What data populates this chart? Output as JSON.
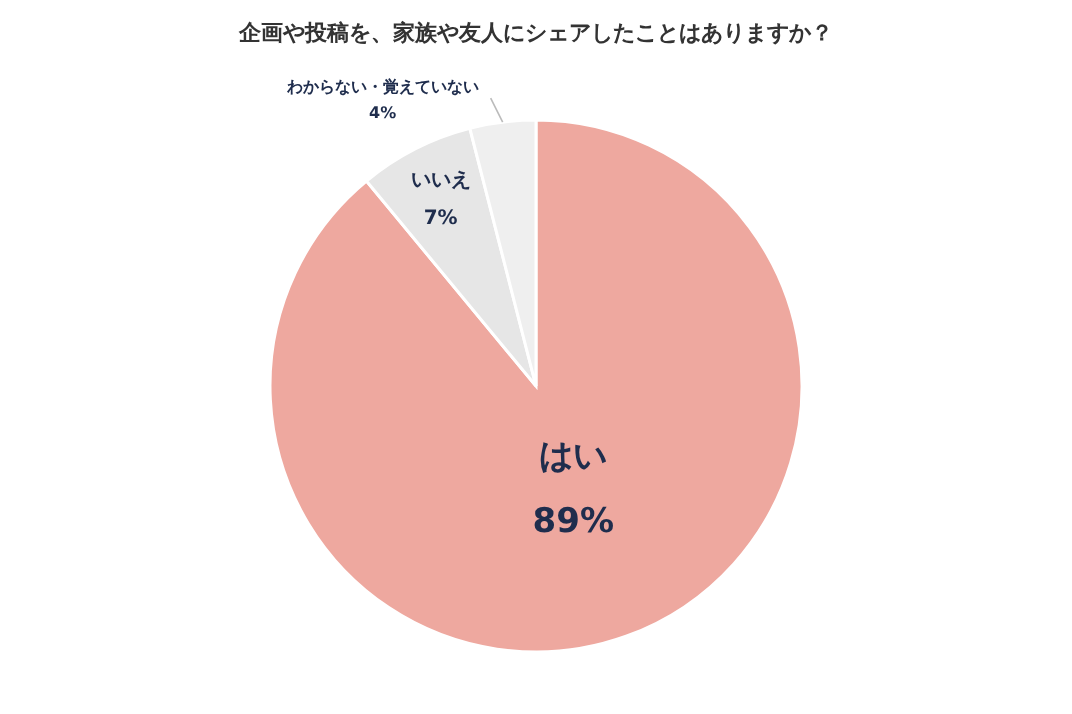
{
  "chart_data": {
    "type": "pie",
    "title": "企画や投稿を、家族や友人にシェアしたことはありますか？",
    "categories": [
      "はい",
      "いいえ",
      "わからない・覚えていない"
    ],
    "values": [
      89,
      7,
      4
    ],
    "value_labels": [
      "89%",
      "7%",
      "4%"
    ],
    "colors": [
      "#eea89f",
      "#e6e6e6",
      "#efefef"
    ],
    "legend": false
  }
}
